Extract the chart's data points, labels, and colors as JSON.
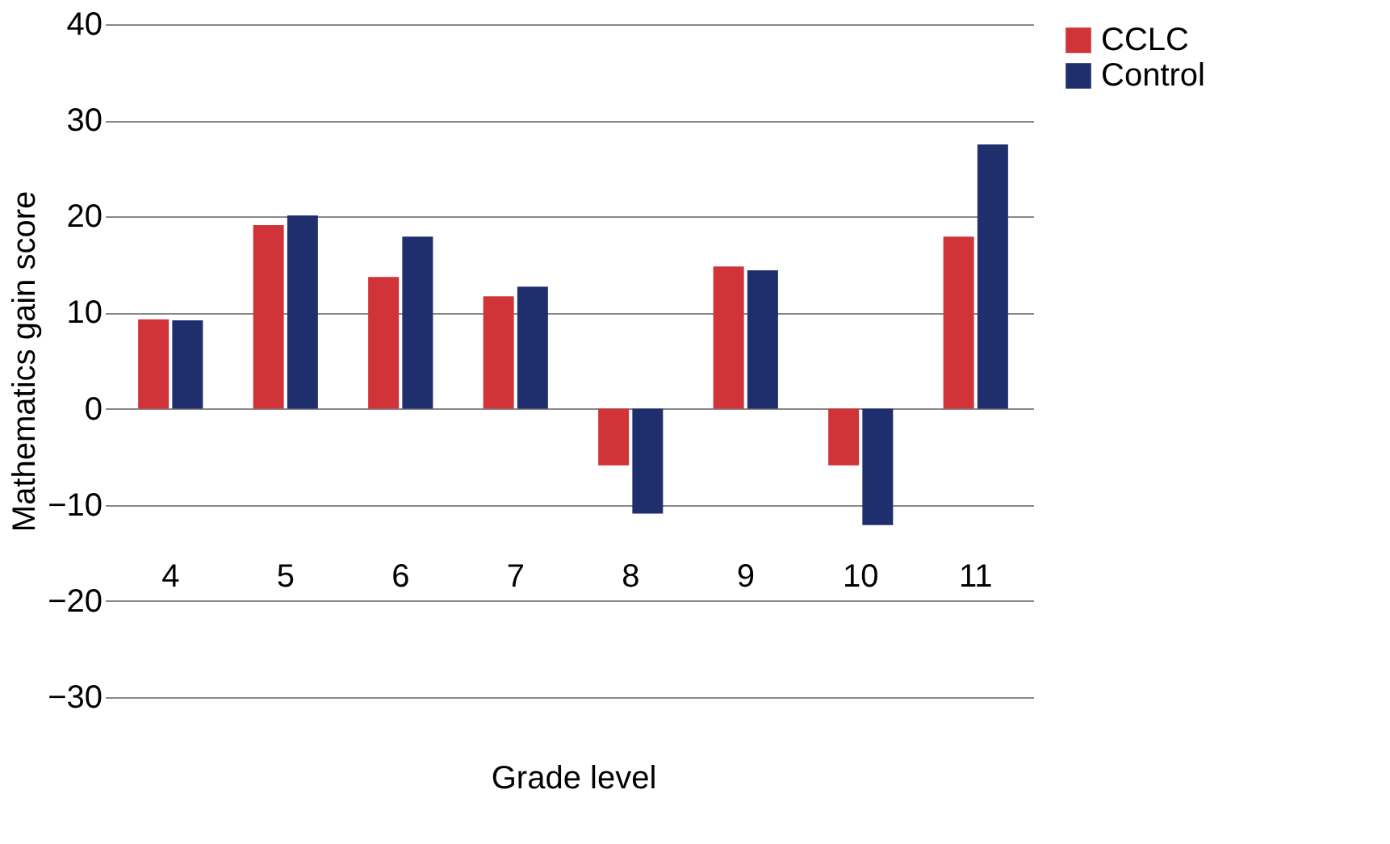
{
  "chart_data": {
    "type": "bar",
    "xlabel": "Grade level",
    "ylabel": "Mathematics gain score",
    "categories": [
      "4",
      "5",
      "6",
      "7",
      "8",
      "9",
      "10",
      "11"
    ],
    "series": [
      {
        "name": "CCLC",
        "color": "#d13438",
        "values": [
          9.3,
          19.1,
          13.7,
          11.7,
          -5.9,
          14.8,
          -5.9,
          17.9
        ]
      },
      {
        "name": "Control",
        "color": "#1f2f6e",
        "values": [
          9.2,
          20.1,
          17.9,
          12.7,
          -10.9,
          14.4,
          -12.1,
          27.5
        ]
      }
    ],
    "ylim": [
      -30,
      40
    ],
    "yticks": [
      -30,
      -20,
      -10,
      0,
      10,
      20,
      30,
      40
    ],
    "grid": "y",
    "legend": "right"
  }
}
